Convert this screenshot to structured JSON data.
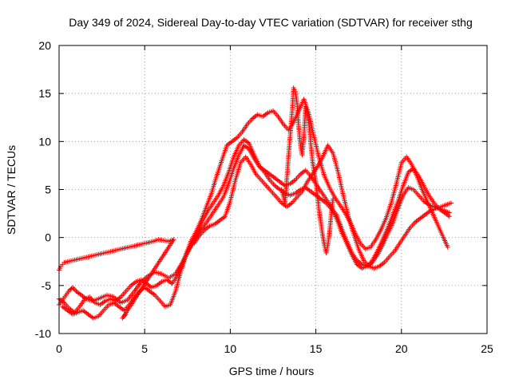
{
  "chart_data": {
    "type": "scatter",
    "title": "Day 349 of 2024, Sidereal Day-to-day VTEC variation (SDTVAR) for receiver sthg",
    "xlabel": "GPS time / hours",
    "ylabel": "SDTVAR / TECUs",
    "xlim": [
      0,
      25
    ],
    "ylim": [
      -10,
      20
    ],
    "xticks": [
      0,
      5,
      10,
      15,
      20,
      25
    ],
    "yticks": [
      -10,
      -5,
      0,
      5,
      10,
      15,
      20
    ],
    "grid": true,
    "marker": "+",
    "color": "#ff0000",
    "series": [
      {
        "name": "track-a",
        "x": [
          0.0,
          0.2,
          0.4,
          0.6,
          0.8,
          1.0,
          1.3,
          1.6,
          2.0,
          2.4,
          2.8,
          3.2,
          3.6,
          4.0,
          4.4,
          4.8,
          5.2,
          5.6,
          6.0,
          6.4,
          6.8,
          7.2,
          7.5,
          7.8,
          8.1,
          8.4,
          8.7,
          9.0,
          9.3,
          9.6,
          9.9,
          10.2,
          10.5,
          10.8,
          11.1,
          11.4,
          11.7,
          12.0,
          12.3,
          12.6,
          12.9,
          13.2,
          13.5,
          13.8,
          14.1,
          14.4,
          14.7,
          15.0,
          15.3,
          15.6,
          15.9,
          16.2,
          16.5,
          16.8,
          17.1,
          17.4,
          17.7,
          18.0,
          18.3,
          18.6,
          18.9,
          19.2,
          19.5,
          19.8,
          20.1,
          20.4,
          20.7,
          21.0,
          21.3,
          21.6,
          21.9,
          22.2,
          22.5,
          22.8
        ],
        "y": [
          -7.0,
          -6.5,
          -6.0,
          -5.5,
          -5.2,
          -5.6,
          -6.0,
          -6.4,
          -6.6,
          -6.3,
          -6.0,
          -6.2,
          -6.8,
          -6.5,
          -5.6,
          -4.6,
          -4.0,
          -3.6,
          -3.8,
          -4.2,
          -3.8,
          -2.6,
          -1.5,
          -0.5,
          0.6,
          1.8,
          2.8,
          3.6,
          4.4,
          5.4,
          6.8,
          8.4,
          9.6,
          10.2,
          9.8,
          8.6,
          7.4,
          6.8,
          6.0,
          5.4,
          5.0,
          4.6,
          4.4,
          4.6,
          5.0,
          5.2,
          4.8,
          4.4,
          4.0,
          3.6,
          3.0,
          2.4,
          1.0,
          -0.4,
          -1.6,
          -2.4,
          -2.8,
          -3.0,
          -2.6,
          -1.8,
          -0.8,
          0.4,
          1.6,
          3.0,
          4.4,
          5.2,
          5.0,
          4.4,
          3.8,
          3.4,
          3.2,
          3.0,
          2.8,
          2.6
        ]
      },
      {
        "name": "track-b",
        "x": [
          0.0,
          0.3,
          0.6,
          0.9,
          1.2,
          1.5,
          1.8,
          2.1,
          2.4,
          2.7,
          3.0,
          3.3,
          3.6,
          3.9,
          4.2,
          4.5,
          4.8,
          5.1,
          5.4,
          5.7,
          6.0,
          6.3,
          6.6,
          6.9,
          7.2,
          7.5,
          7.8,
          8.1,
          8.4,
          8.7,
          9.0,
          9.3,
          9.6,
          9.9,
          10.2,
          10.5,
          10.8,
          11.1,
          11.4,
          11.7,
          12.0,
          12.3,
          12.6,
          12.9,
          13.2,
          13.5,
          13.8,
          14.1,
          14.4,
          14.7,
          15.0,
          15.3,
          15.6,
          15.9,
          16.2,
          16.5,
          16.8,
          17.1,
          17.4,
          17.7,
          18.0,
          18.3,
          18.6,
          18.9,
          19.2,
          19.5,
          19.8,
          20.1,
          20.4,
          20.7,
          21.0,
          21.3,
          21.6,
          21.9,
          22.2,
          22.5,
          22.8
        ],
        "y": [
          -6.4,
          -6.8,
          -7.4,
          -7.8,
          -7.2,
          -6.4,
          -6.2,
          -6.8,
          -7.0,
          -6.6,
          -6.4,
          -6.6,
          -6.2,
          -5.6,
          -5.0,
          -4.6,
          -4.4,
          -4.8,
          -5.2,
          -5.0,
          -4.6,
          -4.4,
          -4.8,
          -4.0,
          -2.8,
          -1.6,
          -0.6,
          0.2,
          1.0,
          1.8,
          2.6,
          3.4,
          4.2,
          5.6,
          7.2,
          8.6,
          9.6,
          9.2,
          8.2,
          7.4,
          7.0,
          6.6,
          6.2,
          5.8,
          5.4,
          5.6,
          6.0,
          6.6,
          7.0,
          6.4,
          5.6,
          4.8,
          4.0,
          3.2,
          2.0,
          0.6,
          -0.6,
          -1.8,
          -2.8,
          -3.2,
          -3.0,
          -2.4,
          -1.4,
          -0.2,
          1.0,
          2.4,
          3.8,
          5.4,
          6.8,
          7.2,
          6.4,
          5.4,
          4.4,
          3.6,
          3.0,
          2.6,
          2.2
        ]
      },
      {
        "name": "track-c",
        "x": [
          0.2,
          0.5,
          0.8,
          1.1,
          1.4,
          1.7,
          2.0,
          2.3,
          2.6,
          2.9,
          3.2,
          3.5,
          3.8,
          4.1,
          4.4,
          4.7,
          5.0,
          5.3,
          5.6,
          5.9,
          6.2,
          6.5,
          6.8,
          7.1,
          7.4,
          7.7,
          8.0,
          8.3,
          8.6,
          8.9,
          9.2,
          9.5,
          9.8,
          10.1,
          10.4,
          10.7,
          11.0,
          11.3,
          11.6,
          11.9,
          12.2,
          12.5,
          12.8,
          13.1,
          13.4,
          13.7,
          14.0,
          14.3,
          14.6,
          14.9,
          15.2,
          15.5,
          15.8,
          16.1,
          16.4,
          16.7,
          17.0,
          17.3,
          17.6,
          17.9,
          18.2,
          18.5,
          18.8,
          19.1,
          19.4,
          19.7,
          20.0,
          20.3,
          20.6,
          20.9,
          21.2,
          21.5,
          21.8,
          22.1,
          22.4,
          22.7
        ],
        "y": [
          -7.2,
          -7.6,
          -8.0,
          -7.8,
          -7.6,
          -8.0,
          -8.4,
          -8.2,
          -7.6,
          -7.0,
          -6.8,
          -7.2,
          -7.6,
          -7.0,
          -6.2,
          -5.6,
          -5.2,
          -5.6,
          -6.0,
          -6.6,
          -7.2,
          -7.0,
          -5.6,
          -3.6,
          -1.8,
          -0.4,
          0.6,
          1.8,
          3.2,
          4.6,
          6.4,
          8.0,
          9.6,
          10.0,
          10.4,
          11.0,
          11.8,
          12.4,
          12.8,
          12.6,
          13.0,
          13.2,
          12.6,
          11.8,
          11.2,
          12.0,
          13.2,
          14.4,
          12.8,
          10.4,
          8.2,
          6.4,
          5.2,
          4.2,
          3.4,
          2.6,
          1.6,
          0.4,
          -0.6,
          -1.2,
          -1.0,
          -0.2,
          0.8,
          2.0,
          3.6,
          5.6,
          7.8,
          8.4,
          7.6,
          6.4,
          5.0,
          3.8,
          2.6,
          1.4,
          0.2,
          -1.0
        ]
      },
      {
        "name": "track-d",
        "x": [
          7.9,
          8.2,
          8.5,
          8.8,
          9.1,
          9.4,
          9.7,
          10.0,
          10.3,
          10.6,
          10.9,
          11.2,
          11.5,
          11.8,
          12.1,
          12.4,
          12.7,
          13.0,
          13.3,
          13.6,
          13.9,
          14.2,
          14.5,
          14.8,
          15.1,
          15.4,
          15.7,
          16.0,
          16.3,
          16.6,
          16.9,
          17.2,
          17.5,
          17.8,
          18.1,
          18.4,
          18.7,
          19.0,
          19.3,
          19.6,
          19.9,
          20.2,
          20.5,
          20.8,
          21.1,
          21.4,
          21.7,
          22.0,
          22.3,
          22.6,
          22.9
        ],
        "y": [
          -0.6,
          0.2,
          0.8,
          1.2,
          1.4,
          1.8,
          2.2,
          3.8,
          6.0,
          7.8,
          8.4,
          7.6,
          6.6,
          6.0,
          5.4,
          4.8,
          4.2,
          3.6,
          3.2,
          3.6,
          4.2,
          4.8,
          5.8,
          6.6,
          7.4,
          8.4,
          9.6,
          8.8,
          6.8,
          4.4,
          2.2,
          0.4,
          -1.2,
          -2.4,
          -3.0,
          -3.2,
          -3.0,
          -2.6,
          -2.0,
          -1.4,
          -0.6,
          0.2,
          1.0,
          1.6,
          2.0,
          2.4,
          2.8,
          3.0,
          3.2,
          3.4,
          3.6
        ]
      },
      {
        "name": "spikes",
        "x": [
          13.0,
          13.2,
          13.4,
          13.6,
          13.7,
          13.8,
          13.9,
          14.0,
          14.1,
          14.2,
          14.3,
          14.4,
          14.5,
          14.6,
          14.7,
          14.8,
          14.9,
          15.0,
          15.1,
          15.2,
          15.3,
          15.4,
          15.5,
          15.6,
          15.7,
          15.8,
          15.9,
          16.0
        ],
        "y": [
          5.0,
          3.6,
          8.4,
          12.8,
          15.6,
          15.2,
          14.0,
          11.4,
          9.6,
          8.6,
          10.4,
          13.6,
          13.0,
          11.8,
          9.8,
          8.0,
          6.8,
          5.8,
          4.2,
          2.6,
          1.4,
          0.2,
          -0.8,
          -1.6,
          -0.8,
          0.6,
          2.4,
          4.0
        ]
      },
      {
        "name": "early-cluster",
        "x": [
          0.0,
          0.1,
          0.2,
          0.3,
          5.5,
          5.8,
          6.1,
          6.4,
          6.7,
          3.7,
          3.9
        ],
        "y": [
          -3.4,
          -3.0,
          -2.8,
          -2.6,
          -0.4,
          -0.2,
          -0.3,
          -0.4,
          -0.2,
          -8.4,
          -8.0
        ]
      }
    ]
  }
}
